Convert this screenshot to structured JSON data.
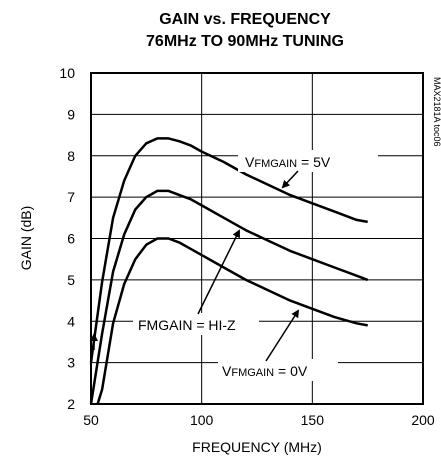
{
  "chart_data": {
    "type": "line",
    "title": "GAIN vs. FREQUENCY",
    "subtitle": "76MHz TO 90MHz TUNING",
    "xlabel": "FREQUENCY (MHz)",
    "ylabel": "GAIN (dB)",
    "xlim": [
      50,
      200
    ],
    "ylim": [
      2,
      10
    ],
    "xticks": [
      "50",
      "100",
      "150",
      "200"
    ],
    "yticks": [
      "2",
      "3",
      "4",
      "5",
      "6",
      "7",
      "8",
      "9",
      "10"
    ],
    "grid": true,
    "tag": "MAX2181A toc06",
    "series": [
      {
        "x": [
          50,
          55,
          60,
          65,
          70,
          75,
          80,
          85,
          90,
          95,
          100,
          110,
          120,
          130,
          140,
          150,
          160,
          170,
          175
        ],
        "y": [
          3.0,
          4.95,
          6.5,
          7.4,
          8.0,
          8.3,
          8.42,
          8.42,
          8.35,
          8.25,
          8.1,
          7.85,
          7.55,
          7.3,
          7.05,
          6.85,
          6.65,
          6.45,
          6.4
        ]
      },
      {
        "x": [
          50,
          55,
          60,
          65,
          70,
          75,
          80,
          85,
          90,
          95,
          100,
          110,
          120,
          130,
          140,
          150,
          160,
          170,
          175
        ],
        "y": [
          2.0,
          3.7,
          5.2,
          6.1,
          6.7,
          7.0,
          7.15,
          7.15,
          7.05,
          6.95,
          6.8,
          6.5,
          6.2,
          5.95,
          5.7,
          5.5,
          5.3,
          5.1,
          5.0
        ]
      },
      {
        "x": [
          53,
          55,
          60,
          65,
          70,
          75,
          80,
          85,
          90,
          95,
          100,
          110,
          120,
          130,
          140,
          150,
          160,
          170,
          175
        ],
        "y": [
          2.0,
          2.35,
          3.95,
          4.9,
          5.5,
          5.85,
          6.0,
          6.0,
          5.9,
          5.75,
          5.6,
          5.3,
          5.0,
          4.75,
          4.5,
          4.3,
          4.1,
          3.95,
          3.9
        ]
      }
    ],
    "annotations": [
      {
        "text_main": "V",
        "text_sub": "FMGAIN",
        "text_rest": " = 5V",
        "pointer": [
          148,
          7.25
        ]
      },
      {
        "text": "FMGAIN = HI-Z",
        "pointer": [
          116,
          6.5
        ]
      },
      {
        "text_main": "V",
        "text_sub": "FMGAIN",
        "text_rest": " = 0V",
        "pointer": [
          141,
          4.45
        ]
      }
    ]
  }
}
